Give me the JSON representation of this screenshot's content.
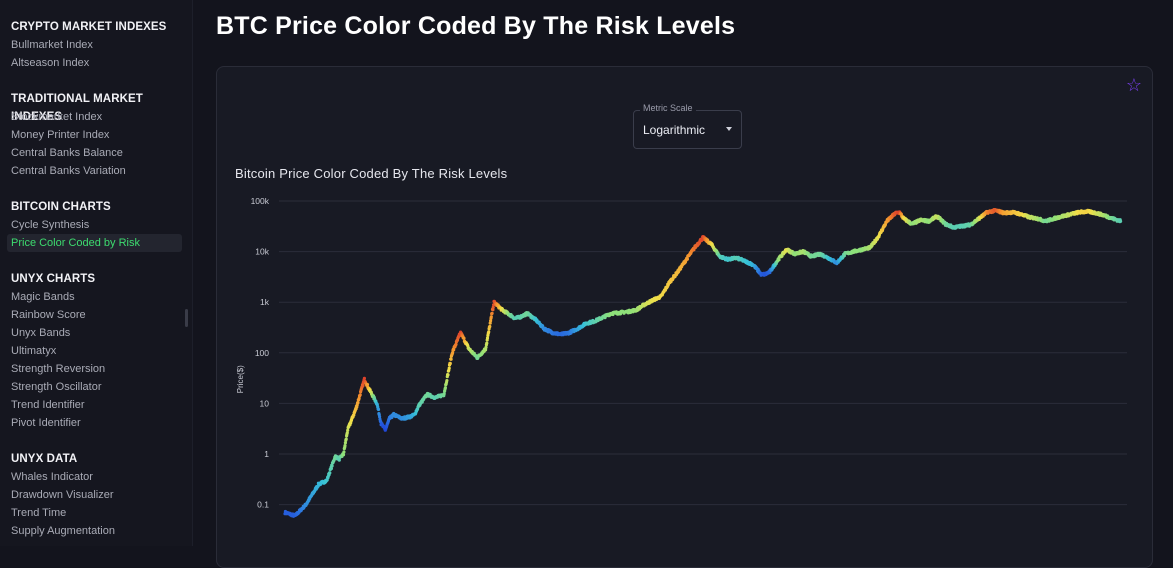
{
  "sidebar": {
    "sections": [
      {
        "title": "CRYPTO MARKET INDEXES",
        "items": [
          "Bullmarket Index",
          "Altseason Index"
        ]
      },
      {
        "title": "TRADITIONAL MARKET INDEXES",
        "items": [
          "Stockmarket Index",
          "Money Printer Index",
          "Central Banks Balance",
          "Central Banks Variation"
        ]
      },
      {
        "title": "BITCOIN CHARTS",
        "items": [
          "Cycle Synthesis",
          "Price Color Coded by Risk"
        ]
      },
      {
        "title": "UNYX CHARTS",
        "items": [
          "Magic Bands",
          "Rainbow Score",
          "Unyx Bands",
          "Ultimatyx",
          "Strength Reversion",
          "Strength Oscillator",
          "Trend Identifier",
          "Pivot Identifier"
        ]
      },
      {
        "title": "UNYX DATA",
        "items": [
          "Whales Indicator",
          "Drawdown Visualizer",
          "Trend Time",
          "Supply Augmentation"
        ]
      }
    ],
    "active_item": "Price Color Coded by Risk"
  },
  "page": {
    "title": "BTC Price Color Coded By The Risk Levels"
  },
  "card": {
    "favorite_icon": "star-outline-icon",
    "accent_color": "#7b3ff2",
    "metric_scale": {
      "label": "Metric Scale",
      "value": "Logarithmic"
    }
  },
  "chart_data": {
    "type": "scatter",
    "title": "Bitcoin Price Color Coded By The Risk Levels",
    "ylabel": "Price($)",
    "xlabel": "",
    "yscale": "log",
    "ylim": [
      0.05,
      100000
    ],
    "yticks": [
      {
        "value": 100000,
        "label": "100k"
      },
      {
        "value": 10000,
        "label": "10k"
      },
      {
        "value": 1000,
        "label": "1k"
      },
      {
        "value": 100,
        "label": "100"
      },
      {
        "value": 10,
        "label": "10"
      },
      {
        "value": 1,
        "label": "1"
      },
      {
        "value": 0.1,
        "label": "0.1"
      }
    ],
    "grid": true,
    "color_scale": [
      "#1a2fd6",
      "#2f7fe0",
      "#37c2d8",
      "#8ee07a",
      "#f2e04a",
      "#f4922e",
      "#d4202a"
    ],
    "series": [
      {
        "x": [
          0.0,
          0.012,
          0.025,
          0.04,
          0.05,
          0.06,
          0.065,
          0.07,
          0.075,
          0.085,
          0.095,
          0.1,
          0.11,
          0.115,
          0.12,
          0.125,
          0.13,
          0.14,
          0.15,
          0.155,
          0.16,
          0.17,
          0.18,
          0.19,
          0.2,
          0.21,
          0.22,
          0.23,
          0.24,
          0.25,
          0.26,
          0.27,
          0.275,
          0.28,
          0.29,
          0.3,
          0.31,
          0.32,
          0.33,
          0.34,
          0.35,
          0.36,
          0.37,
          0.38,
          0.39,
          0.4,
          0.41,
          0.42,
          0.43,
          0.44,
          0.45,
          0.46,
          0.47,
          0.48,
          0.49,
          0.5,
          0.51,
          0.52,
          0.53,
          0.54,
          0.55,
          0.56,
          0.57,
          0.575,
          0.58,
          0.59,
          0.6,
          0.61,
          0.62,
          0.63,
          0.64,
          0.65,
          0.66,
          0.67,
          0.68,
          0.69,
          0.7,
          0.71,
          0.72,
          0.73,
          0.735,
          0.74,
          0.75,
          0.76,
          0.77,
          0.78,
          0.79,
          0.8,
          0.81,
          0.82,
          0.83,
          0.84,
          0.85,
          0.86,
          0.87,
          0.88,
          0.89,
          0.9,
          0.91,
          0.92,
          0.93,
          0.94,
          0.95,
          0.96,
          0.97,
          0.98,
          0.99,
          1.0
        ],
        "y": [
          0.07,
          0.06,
          0.1,
          0.25,
          0.3,
          0.9,
          0.8,
          1.0,
          3.0,
          8.0,
          30.0,
          20.0,
          10.0,
          4.0,
          3.0,
          5.0,
          6.0,
          5.0,
          5.5,
          6.0,
          9.0,
          15.0,
          13.0,
          15.0,
          100.0,
          250.0,
          120.0,
          80.0,
          120.0,
          1000.0,
          700.0,
          550.0,
          480.0,
          500.0,
          600.0,
          450.0,
          300.0,
          250.0,
          230.0,
          250.0,
          300.0,
          380.0,
          420.0,
          500.0,
          600.0,
          620.0,
          650.0,
          700.0,
          900.0,
          1100.0,
          1300.0,
          2500.0,
          4000.0,
          7000.0,
          12000.0,
          19000.0,
          14000.0,
          8000.0,
          7000.0,
          7500.0,
          6500.0,
          5500.0,
          3500.0,
          3600.0,
          4000.0,
          7000.0,
          11000.0,
          9000.0,
          10000.0,
          8000.0,
          9000.0,
          7500.0,
          6000.0,
          9000.0,
          10000.0,
          11000.0,
          12000.0,
          20000.0,
          40000.0,
          57000.0,
          60000.0,
          45000.0,
          35000.0,
          42000.0,
          40000.0,
          50000.0,
          35000.0,
          30000.0,
          32000.0,
          34000.0,
          45000.0,
          60000.0,
          65000.0,
          58000.0,
          60000.0,
          55000.0,
          48000.0,
          45000.0,
          40000.0,
          45000.0,
          50000.0,
          55000.0,
          60000.0,
          62000.0,
          58000.0,
          52000.0,
          45000.0,
          40000.0
        ],
        "risk": [
          0.1,
          0.1,
          0.2,
          0.3,
          0.35,
          0.45,
          0.4,
          0.5,
          0.6,
          0.75,
          0.95,
          0.75,
          0.3,
          0.1,
          0.05,
          0.15,
          0.2,
          0.2,
          0.25,
          0.3,
          0.4,
          0.45,
          0.4,
          0.45,
          0.8,
          0.95,
          0.6,
          0.45,
          0.55,
          0.95,
          0.65,
          0.45,
          0.4,
          0.4,
          0.45,
          0.35,
          0.2,
          0.15,
          0.12,
          0.15,
          0.25,
          0.35,
          0.4,
          0.45,
          0.5,
          0.5,
          0.5,
          0.52,
          0.6,
          0.65,
          0.68,
          0.72,
          0.75,
          0.8,
          0.88,
          0.95,
          0.7,
          0.4,
          0.35,
          0.4,
          0.35,
          0.3,
          0.1,
          0.08,
          0.12,
          0.5,
          0.65,
          0.5,
          0.55,
          0.45,
          0.45,
          0.35,
          0.2,
          0.45,
          0.5,
          0.5,
          0.55,
          0.65,
          0.8,
          0.92,
          0.95,
          0.7,
          0.5,
          0.55,
          0.5,
          0.6,
          0.45,
          0.4,
          0.4,
          0.42,
          0.6,
          0.85,
          0.92,
          0.8,
          0.75,
          0.7,
          0.6,
          0.55,
          0.45,
          0.5,
          0.55,
          0.6,
          0.68,
          0.7,
          0.62,
          0.55,
          0.45,
          0.4
        ]
      }
    ]
  }
}
